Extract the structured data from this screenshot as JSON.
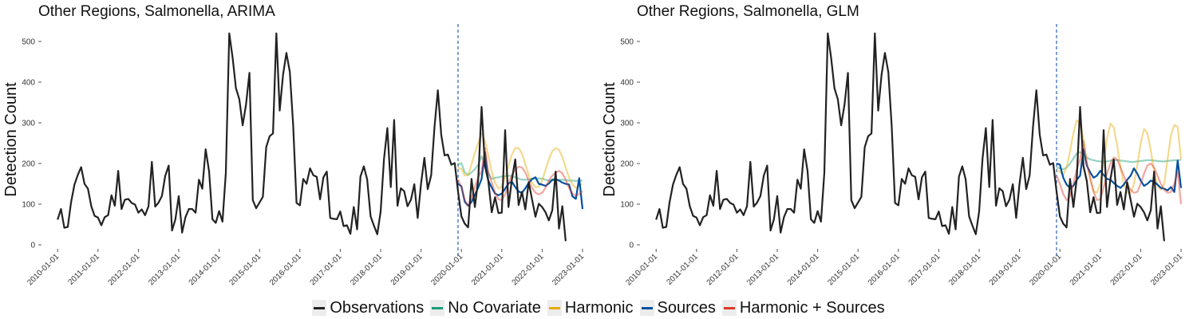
{
  "chart_data": [
    {
      "type": "line",
      "title": "Other Regions, Salmonella, ARIMA",
      "xlabel": "",
      "ylabel": "Detection Count",
      "ylim": [
        0,
        520
      ],
      "yticks": [
        0,
        100,
        200,
        300,
        400,
        500
      ],
      "xticks": [
        "2010-01-01",
        "2011-01-01",
        "2012-01-01",
        "2013-01-01",
        "2014-01-01",
        "2015-01-01",
        "2016-01-01",
        "2017-01-01",
        "2018-01-01",
        "2019-01-01",
        "2020-01-01",
        "2021-01-01",
        "2022-01-01",
        "2023-01-01"
      ],
      "grid": false,
      "legend_position": "bottom",
      "forecast_start": "2019-12-01",
      "observations": {
        "start": "2010-01",
        "frequency": "monthly",
        "values": [
          62,
          88,
          42,
          44,
          105,
          148,
          172,
          191,
          150,
          138,
          95,
          71,
          67,
          48,
          68,
          73,
          122,
          96,
          182,
          88,
          111,
          113,
          103,
          99,
          79,
          87,
          73,
          95,
          204,
          94,
          104,
          120,
          170,
          195,
          35,
          63,
          120,
          30,
          68,
          88,
          88,
          79,
          160,
          138,
          235,
          181,
          63,
          54,
          83,
          57,
          177,
          520,
          460,
          385,
          358,
          294,
          345,
          423,
          110,
          90,
          104,
          118,
          240,
          267,
          274,
          520,
          330,
          418,
          472,
          425,
          293,
          103,
          97,
          162,
          150,
          188,
          171,
          167,
          112,
          166,
          180,
          66,
          64,
          63,
          82,
          46,
          48,
          27,
          93,
          38,
          168,
          193,
          161,
          70,
          47,
          26,
          82,
          211,
          287,
          142,
          307,
          96,
          139,
          132,
          95,
          111,
          149,
          66,
          150,
          214,
          137,
          171,
          290,
          380,
          271,
          220,
          222,
          197,
          201,
          131,
          70,
          52,
          43,
          162,
          93,
          162,
          339,
          194,
          157,
          80,
          117,
          78,
          79,
          282,
          93,
          161,
          210,
          98,
          130,
          87,
          154,
          111,
          69,
          101,
          93,
          80,
          60,
          85,
          180,
          40,
          95,
          9
        ]
      },
      "forecasts": {
        "start": "2019-12",
        "series": [
          {
            "name": "No Covariate",
            "color": "#1b9e77",
            "values": [
              197,
              201,
              178,
              172,
              178,
              186,
              197,
              218,
              194,
              178,
              162,
              165,
              166,
              168,
              169,
              170,
              169,
              166,
              163,
              160,
              160,
              161,
              162,
              163,
              163,
              163,
              160,
              158,
              158,
              160,
              160,
              160,
              159,
              158,
              158,
              157,
              158,
              158
            ]
          },
          {
            "name": "Harmonic",
            "color": "#e6ab02",
            "values": [
              190,
              187,
              170,
              172,
              198,
              226,
              250,
              274,
              255,
              220,
              180,
              153,
              138,
              144,
              166,
              194,
              222,
              238,
              238,
              224,
              198,
              172,
              152,
              142,
              143,
              158,
              185,
              210,
              230,
              238,
              234,
              216,
              190,
              165,
              148,
              140,
              145,
              150
            ]
          },
          {
            "name": "Sources",
            "color": "#0050a0",
            "values": [
              150,
              144,
              106,
              96,
              105,
              123,
              141,
              162,
              228,
              158,
              141,
              126,
              122,
              126,
              138,
              151,
              155,
              142,
              131,
              128,
              139,
              152,
              162,
              166,
              150,
              148,
              145,
              151,
              160,
              161,
              158,
              153,
              150,
              148,
              119,
              113,
              164,
              88
            ]
          },
          {
            "name": "Harmonic + Sources",
            "color": "#e03a2a",
            "values": [
              160,
              143,
              110,
              96,
              113,
              143,
              166,
              182,
              238,
              179,
              154,
              128,
              112,
              110,
              124,
              150,
              172,
              185,
              192,
              190,
              178,
              158,
              140,
              128,
              124,
              128,
              140,
              158,
              170,
              178,
              182,
              176,
              160,
              140,
              126,
              120,
              125,
              132
            ]
          }
        ]
      }
    },
    {
      "type": "line",
      "title": "Other Regions, Salmonella, GLM",
      "xlabel": "",
      "ylabel": "Detection Count",
      "ylim": [
        0,
        520
      ],
      "yticks": [
        0,
        100,
        200,
        300,
        400,
        500
      ],
      "xticks": [
        "2010-01-01",
        "2011-01-01",
        "2012-01-01",
        "2013-01-01",
        "2014-01-01",
        "2015-01-01",
        "2016-01-01",
        "2017-01-01",
        "2018-01-01",
        "2019-01-01",
        "2020-01-01",
        "2021-01-01",
        "2022-01-01",
        "2023-01-01"
      ],
      "grid": false,
      "legend_position": "bottom",
      "forecast_start": "2019-12-01",
      "observations": {
        "start": "2010-01",
        "frequency": "monthly",
        "values": [
          62,
          88,
          42,
          44,
          105,
          148,
          172,
          191,
          150,
          138,
          95,
          71,
          67,
          48,
          68,
          73,
          122,
          96,
          182,
          88,
          111,
          113,
          103,
          99,
          79,
          87,
          73,
          95,
          204,
          94,
          104,
          120,
          170,
          195,
          35,
          63,
          120,
          30,
          68,
          88,
          88,
          79,
          160,
          138,
          235,
          181,
          63,
          54,
          83,
          57,
          177,
          520,
          460,
          385,
          358,
          294,
          345,
          423,
          110,
          90,
          104,
          118,
          240,
          267,
          274,
          520,
          330,
          418,
          472,
          425,
          293,
          103,
          97,
          162,
          150,
          188,
          171,
          167,
          112,
          166,
          180,
          66,
          64,
          63,
          82,
          46,
          48,
          27,
          93,
          38,
          168,
          193,
          161,
          70,
          47,
          26,
          82,
          211,
          287,
          142,
          307,
          96,
          139,
          132,
          95,
          111,
          149,
          66,
          150,
          214,
          137,
          171,
          290,
          380,
          271,
          220,
          222,
          197,
          201,
          131,
          70,
          52,
          43,
          162,
          93,
          162,
          339,
          194,
          157,
          80,
          117,
          78,
          79,
          282,
          93,
          161,
          210,
          98,
          130,
          87,
          154,
          111,
          69,
          101,
          93,
          80,
          60,
          85,
          180,
          40,
          95,
          9
        ]
      },
      "forecasts": {
        "start": "2019-12",
        "series": [
          {
            "name": "No Covariate",
            "color": "#1b9e77",
            "values": [
              190,
              188,
              186,
              190,
              200,
              212,
              225,
              228,
              222,
              215,
              210,
              208,
              206,
              205,
              204,
              205,
              207,
              208,
              208,
              207,
              206,
              205,
              204,
              204,
              205,
              206,
              207,
              208,
              208,
              207,
              206,
              205,
              205,
              206,
              207,
              208,
              208,
              209
            ]
          },
          {
            "name": "Harmonic",
            "color": "#e6ab02",
            "values": [
              185,
              180,
              172,
              190,
              230,
              275,
              306,
              300,
              262,
              205,
              160,
              132,
              128,
              150,
              200,
              260,
              298,
              288,
              245,
              190,
              150,
              128,
              128,
              150,
              195,
              250,
              285,
              275,
              232,
              180,
              145,
              135,
              150,
              210,
              270,
              295,
              290,
              210
            ]
          },
          {
            "name": "Sources",
            "color": "#0050a0",
            "values": [
              200,
              197,
              165,
              148,
              140,
              145,
              160,
              170,
              235,
              195,
              178,
              165,
              170,
              182,
              172,
              162,
              160,
              152,
              145,
              140,
              148,
              160,
              170,
              188,
              175,
              158,
              145,
              150,
              158,
              155,
              148,
              140,
              138,
              134,
              142,
              130,
              207,
              140
            ]
          },
          {
            "name": "Harmonic + Sources",
            "color": "#e03a2a",
            "values": [
              170,
              150,
              125,
              110,
              120,
              150,
              185,
              210,
              255,
              200,
              165,
              130,
              110,
              112,
              140,
              175,
              200,
              215,
              210,
              190,
              170,
              150,
              135,
              128,
              130,
              150,
              175,
              195,
              200,
              190,
              170,
              150,
              135,
              128,
              130,
              150,
              180,
              100
            ]
          }
        ]
      }
    }
  ],
  "legend": {
    "items": [
      {
        "label": "Observations",
        "color": "#222222"
      },
      {
        "label": "No Covariate",
        "color": "#1b9e77"
      },
      {
        "label": "Harmonic",
        "color": "#e6ab02"
      },
      {
        "label": "Sources",
        "color": "#0050a0"
      },
      {
        "label": "Harmonic + Sources",
        "color": "#e03a2a"
      }
    ]
  }
}
